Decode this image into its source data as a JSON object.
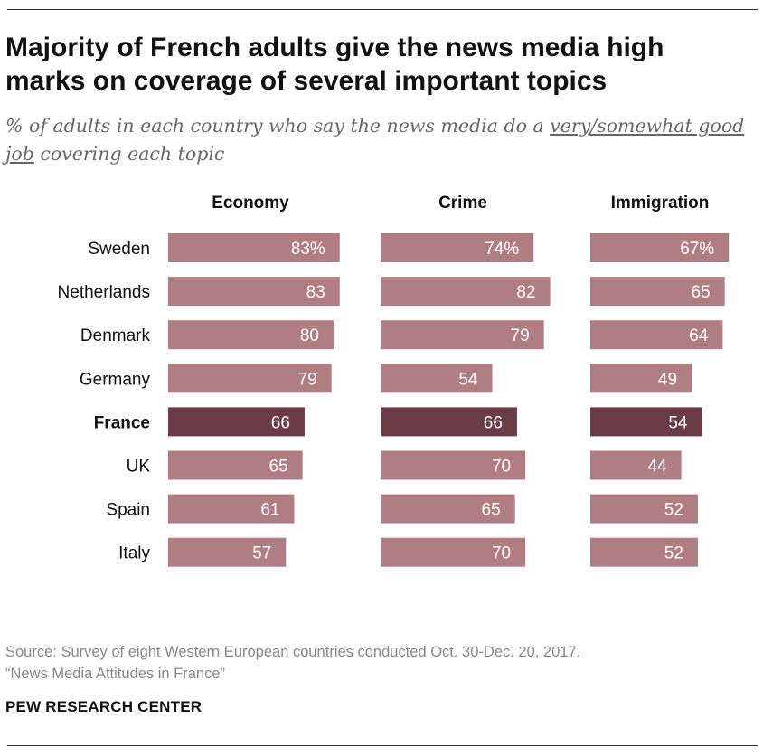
{
  "title": "Majority of French adults give the news media high marks on coverage of several important topics",
  "subtitle": {
    "before": "% of adults in each country who say the news media do a ",
    "emphasis": "very/somewhat good job",
    "after": " covering each topic"
  },
  "source_lines": [
    "Source: Survey of eight Western European countries conducted Oct. 30-Dec. 20, 2017.",
    "“News Media Attitudes in France”"
  ],
  "brand": "PEW RESEARCH CENTER",
  "colors": {
    "bar": "#b07d83",
    "highlight": "#6b3b48",
    "bar_text": "#ffffff"
  },
  "chart_data": {
    "type": "bar",
    "orientation": "horizontal",
    "unit": "%",
    "categories": [
      "Sweden",
      "Netherlands",
      "Denmark",
      "Germany",
      "France",
      "UK",
      "Spain",
      "Italy"
    ],
    "highlight_category": "France",
    "series": [
      {
        "name": "Economy",
        "values": [
          83,
          83,
          80,
          79,
          66,
          65,
          61,
          57
        ]
      },
      {
        "name": "Crime",
        "values": [
          74,
          82,
          79,
          54,
          66,
          70,
          65,
          70
        ]
      },
      {
        "name": "Immigration",
        "values": [
          67,
          65,
          64,
          49,
          54,
          44,
          52,
          52
        ]
      }
    ],
    "first_row_label_suffix": "%",
    "xlim": [
      0,
      100
    ]
  }
}
